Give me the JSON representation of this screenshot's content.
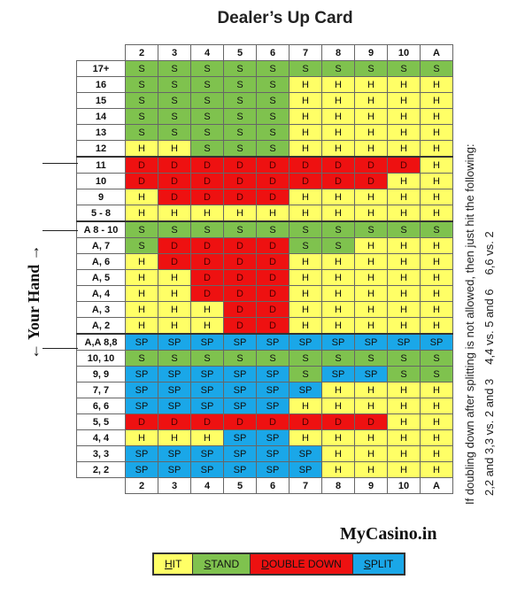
{
  "title": "Dealer’s Up Card",
  "side_label": "← Your Hand →",
  "brand": "MyCasino.in",
  "note": {
    "line1": "If doubling down after splitting is not allowed, then just hit the following:",
    "items": [
      "2,2 and 3,3 vs. 2 and 3",
      "4,4 vs. 5 and 6",
      "6,6 vs. 2"
    ]
  },
  "legend": [
    {
      "key": "H",
      "rest": "IT",
      "code": "H"
    },
    {
      "key": "S",
      "rest": "TAND",
      "code": "S"
    },
    {
      "key": "D",
      "rest": "OUBLE DOWN",
      "code": "D"
    },
    {
      "key": "S",
      "rest": "PLIT",
      "code": "SP"
    }
  ],
  "colors": {
    "H": "#ffff66",
    "S": "#7fc24e",
    "D": "#ee1111",
    "SP": "#1aa7e8"
  },
  "chart_data": {
    "type": "table",
    "columns": [
      "2",
      "3",
      "4",
      "5",
      "6",
      "7",
      "8",
      "9",
      "10",
      "A"
    ],
    "rows": [
      {
        "hand": "17+",
        "actions": [
          "S",
          "S",
          "S",
          "S",
          "S",
          "S",
          "S",
          "S",
          "S",
          "S"
        ]
      },
      {
        "hand": "16",
        "actions": [
          "S",
          "S",
          "S",
          "S",
          "S",
          "H",
          "H",
          "H",
          "H",
          "H"
        ]
      },
      {
        "hand": "15",
        "actions": [
          "S",
          "S",
          "S",
          "S",
          "S",
          "H",
          "H",
          "H",
          "H",
          "H"
        ]
      },
      {
        "hand": "14",
        "actions": [
          "S",
          "S",
          "S",
          "S",
          "S",
          "H",
          "H",
          "H",
          "H",
          "H"
        ]
      },
      {
        "hand": "13",
        "actions": [
          "S",
          "S",
          "S",
          "S",
          "S",
          "H",
          "H",
          "H",
          "H",
          "H"
        ]
      },
      {
        "hand": "12",
        "actions": [
          "H",
          "H",
          "S",
          "S",
          "S",
          "H",
          "H",
          "H",
          "H",
          "H"
        ]
      },
      {
        "hand": "11",
        "actions": [
          "D",
          "D",
          "D",
          "D",
          "D",
          "D",
          "D",
          "D",
          "D",
          "H"
        ]
      },
      {
        "hand": "10",
        "actions": [
          "D",
          "D",
          "D",
          "D",
          "D",
          "D",
          "D",
          "D",
          "H",
          "H"
        ]
      },
      {
        "hand": "9",
        "actions": [
          "H",
          "D",
          "D",
          "D",
          "D",
          "H",
          "H",
          "H",
          "H",
          "H"
        ]
      },
      {
        "hand": "5 - 8",
        "actions": [
          "H",
          "H",
          "H",
          "H",
          "H",
          "H",
          "H",
          "H",
          "H",
          "H"
        ]
      },
      {
        "hand": "A 8 - 10",
        "actions": [
          "S",
          "S",
          "S",
          "S",
          "S",
          "S",
          "S",
          "S",
          "S",
          "S"
        ]
      },
      {
        "hand": "A, 7",
        "actions": [
          "S",
          "D",
          "D",
          "D",
          "D",
          "S",
          "S",
          "H",
          "H",
          "H"
        ]
      },
      {
        "hand": "A, 6",
        "actions": [
          "H",
          "D",
          "D",
          "D",
          "D",
          "H",
          "H",
          "H",
          "H",
          "H"
        ]
      },
      {
        "hand": "A, 5",
        "actions": [
          "H",
          "H",
          "D",
          "D",
          "D",
          "H",
          "H",
          "H",
          "H",
          "H"
        ]
      },
      {
        "hand": "A, 4",
        "actions": [
          "H",
          "H",
          "D",
          "D",
          "D",
          "H",
          "H",
          "H",
          "H",
          "H"
        ]
      },
      {
        "hand": "A, 3",
        "actions": [
          "H",
          "H",
          "H",
          "D",
          "D",
          "H",
          "H",
          "H",
          "H",
          "H"
        ]
      },
      {
        "hand": "A, 2",
        "actions": [
          "H",
          "H",
          "H",
          "D",
          "D",
          "H",
          "H",
          "H",
          "H",
          "H"
        ]
      },
      {
        "hand": "A,A 8,8",
        "actions": [
          "SP",
          "SP",
          "SP",
          "SP",
          "SP",
          "SP",
          "SP",
          "SP",
          "SP",
          "SP"
        ]
      },
      {
        "hand": "10, 10",
        "actions": [
          "S",
          "S",
          "S",
          "S",
          "S",
          "S",
          "S",
          "S",
          "S",
          "S"
        ]
      },
      {
        "hand": "9, 9",
        "actions": [
          "SP",
          "SP",
          "SP",
          "SP",
          "SP",
          "S",
          "SP",
          "SP",
          "S",
          "S"
        ]
      },
      {
        "hand": "7, 7",
        "actions": [
          "SP",
          "SP",
          "SP",
          "SP",
          "SP",
          "SP",
          "H",
          "H",
          "H",
          "H"
        ]
      },
      {
        "hand": "6, 6",
        "actions": [
          "SP",
          "SP",
          "SP",
          "SP",
          "SP",
          "H",
          "H",
          "H",
          "H",
          "H"
        ]
      },
      {
        "hand": "5, 5",
        "actions": [
          "D",
          "D",
          "D",
          "D",
          "D",
          "D",
          "D",
          "D",
          "H",
          "H"
        ]
      },
      {
        "hand": "4, 4",
        "actions": [
          "H",
          "H",
          "H",
          "SP",
          "SP",
          "H",
          "H",
          "H",
          "H",
          "H"
        ]
      },
      {
        "hand": "3, 3",
        "actions": [
          "SP",
          "SP",
          "SP",
          "SP",
          "SP",
          "SP",
          "H",
          "H",
          "H",
          "H"
        ]
      },
      {
        "hand": "2, 2",
        "actions": [
          "SP",
          "SP",
          "SP",
          "SP",
          "SP",
          "SP",
          "H",
          "H",
          "H",
          "H"
        ]
      }
    ]
  }
}
